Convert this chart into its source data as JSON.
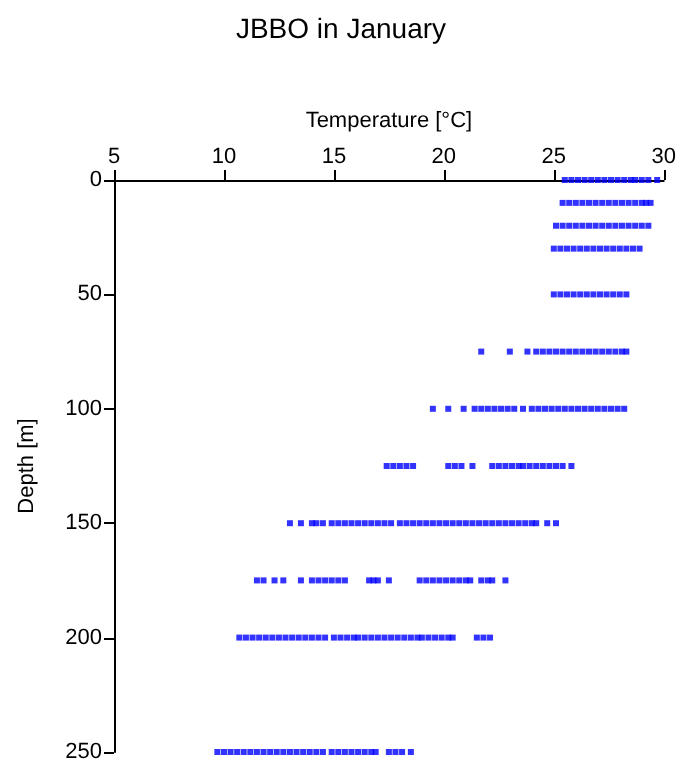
{
  "chart_data": {
    "type": "scatter",
    "title": "JBBO in January",
    "xlabel": "Temperature [°C]",
    "ylabel": "Depth [m]",
    "xlim": [
      5,
      30
    ],
    "xticks": [
      5,
      10,
      15,
      20,
      25,
      30
    ],
    "ylim": [
      250,
      0
    ],
    "yticks": [
      0,
      50,
      100,
      150,
      200,
      250
    ],
    "marker": "square",
    "series": [
      {
        "color": "#0000ff",
        "x": [
          25.5,
          25.8,
          26.1,
          26.4,
          26.7,
          27.0,
          27.3,
          27.6,
          27.9,
          28.2,
          28.5,
          28.7,
          29.0,
          29.3,
          29.7
        ],
        "values": [
          0,
          0,
          0,
          0,
          0,
          0,
          0,
          0,
          0,
          0,
          0,
          0,
          0,
          0,
          0
        ]
      },
      {
        "color": "#0000ff",
        "x": [
          25.4,
          25.7,
          26.0,
          26.3,
          26.6,
          26.9,
          27.2,
          27.5,
          27.8,
          28.1,
          28.4,
          28.7,
          29.0,
          29.2,
          29.4
        ],
        "values": [
          10,
          10,
          10,
          10,
          10,
          10,
          10,
          10,
          10,
          10,
          10,
          10,
          10,
          10,
          10
        ]
      },
      {
        "color": "#0000ff",
        "x": [
          25.1,
          25.4,
          25.7,
          26.0,
          26.3,
          26.6,
          26.9,
          27.2,
          27.5,
          27.8,
          28.1,
          28.4,
          28.7,
          29.0,
          29.3
        ],
        "values": [
          20,
          20,
          20,
          20,
          20,
          20,
          20,
          20,
          20,
          20,
          20,
          20,
          20,
          20,
          20
        ]
      },
      {
        "color": "#0000ff",
        "x": [
          25.0,
          25.3,
          25.6,
          25.9,
          26.2,
          26.5,
          26.8,
          27.1,
          27.4,
          27.7,
          28.0,
          28.3,
          28.6,
          28.9
        ],
        "values": [
          30,
          30,
          30,
          30,
          30,
          30,
          30,
          30,
          30,
          30,
          30,
          30,
          30,
          30
        ]
      },
      {
        "color": "#0000ff",
        "x": [
          25.0,
          25.3,
          25.6,
          25.9,
          26.2,
          26.5,
          26.8,
          27.1,
          27.4,
          27.7,
          28.0,
          28.3
        ],
        "values": [
          50,
          50,
          50,
          50,
          50,
          50,
          50,
          50,
          50,
          50,
          50,
          50
        ]
      },
      {
        "color": "#0000ff",
        "x": [
          21.7,
          23.0,
          23.8,
          24.2,
          24.5,
          24.8,
          25.1,
          25.4,
          25.7,
          26.0,
          26.3,
          26.6,
          26.9,
          27.2,
          27.5,
          27.8,
          28.1,
          28.3
        ],
        "values": [
          75,
          75,
          75,
          75,
          75,
          75,
          75,
          75,
          75,
          75,
          75,
          75,
          75,
          75,
          75,
          75,
          75,
          75
        ]
      },
      {
        "color": "#0000ff",
        "x": [
          19.5,
          20.2,
          20.9,
          21.4,
          21.7,
          22.0,
          22.3,
          22.6,
          22.9,
          23.2,
          23.6,
          24.0,
          24.3,
          24.6,
          24.9,
          25.2,
          25.5,
          25.8,
          26.1,
          26.4,
          26.7,
          27.0,
          27.3,
          27.6,
          27.9,
          28.2
        ],
        "values": [
          100,
          100,
          100,
          100,
          100,
          100,
          100,
          100,
          100,
          100,
          100,
          100,
          100,
          100,
          100,
          100,
          100,
          100,
          100,
          100,
          100,
          100,
          100,
          100,
          100,
          100
        ]
      },
      {
        "color": "#0000ff",
        "x": [
          17.4,
          17.7,
          18.0,
          18.3,
          18.6,
          20.2,
          20.5,
          20.8,
          21.3,
          22.2,
          22.5,
          22.8,
          23.1,
          23.4,
          23.6,
          23.9,
          24.2,
          24.5,
          24.8,
          25.1,
          25.4,
          25.8
        ],
        "values": [
          125,
          125,
          125,
          125,
          125,
          125,
          125,
          125,
          125,
          125,
          125,
          125,
          125,
          125,
          125,
          125,
          125,
          125,
          125,
          125,
          125,
          125
        ]
      },
      {
        "color": "#0000ff",
        "x": [
          13.0,
          13.5,
          14.0,
          14.2,
          14.5,
          14.9,
          15.2,
          15.5,
          15.8,
          16.1,
          16.4,
          16.7,
          17.0,
          17.3,
          17.6,
          18.0,
          18.3,
          18.6,
          18.9,
          19.2,
          19.5,
          19.8,
          20.1,
          20.4,
          20.7,
          21.0,
          21.3,
          21.6,
          21.9,
          22.2,
          22.5,
          22.8,
          23.1,
          23.4,
          23.7,
          24.0,
          24.2,
          24.7,
          25.1
        ],
        "values": [
          150,
          150,
          150,
          150,
          150,
          150,
          150,
          150,
          150,
          150,
          150,
          150,
          150,
          150,
          150,
          150,
          150,
          150,
          150,
          150,
          150,
          150,
          150,
          150,
          150,
          150,
          150,
          150,
          150,
          150,
          150,
          150,
          150,
          150,
          150,
          150,
          150,
          150,
          150
        ]
      },
      {
        "color": "#0000ff",
        "x": [
          11.5,
          11.8,
          12.3,
          12.7,
          13.5,
          14.0,
          14.3,
          14.6,
          14.9,
          15.2,
          15.5,
          16.6,
          16.8,
          17.0,
          17.5,
          18.9,
          19.2,
          19.5,
          19.8,
          20.1,
          20.4,
          20.7,
          21.0,
          21.2,
          21.7,
          22.0,
          22.2,
          22.8
        ],
        "values": [
          175,
          175,
          175,
          175,
          175,
          175,
          175,
          175,
          175,
          175,
          175,
          175,
          175,
          175,
          175,
          175,
          175,
          175,
          175,
          175,
          175,
          175,
          175,
          175,
          175,
          175,
          175,
          175
        ]
      },
      {
        "color": "#0000ff",
        "x": [
          10.7,
          11.0,
          11.3,
          11.6,
          11.9,
          12.2,
          12.5,
          12.8,
          13.1,
          13.4,
          13.7,
          14.0,
          14.3,
          14.6,
          15.0,
          15.3,
          15.6,
          15.9,
          16.1,
          16.4,
          16.7,
          17.0,
          17.3,
          17.6,
          17.9,
          18.2,
          18.5,
          18.8,
          19.0,
          19.3,
          19.6,
          19.9,
          20.2,
          20.4,
          21.5,
          21.8,
          22.1
        ],
        "values": [
          200,
          200,
          200,
          200,
          200,
          200,
          200,
          200,
          200,
          200,
          200,
          200,
          200,
          200,
          200,
          200,
          200,
          200,
          200,
          200,
          200,
          200,
          200,
          200,
          200,
          200,
          200,
          200,
          200,
          200,
          200,
          200,
          200,
          200,
          200,
          200,
          200
        ]
      },
      {
        "color": "#0000ff",
        "x": [
          9.7,
          10.0,
          10.3,
          10.6,
          10.9,
          11.2,
          11.5,
          11.8,
          12.1,
          12.4,
          12.7,
          13.0,
          13.3,
          13.6,
          13.9,
          14.2,
          14.5,
          14.9,
          15.2,
          15.5,
          15.8,
          16.1,
          16.4,
          16.7,
          16.9,
          17.5,
          17.8,
          18.1,
          18.5
        ],
        "values": [
          250,
          250,
          250,
          250,
          250,
          250,
          250,
          250,
          250,
          250,
          250,
          250,
          250,
          250,
          250,
          250,
          250,
          250,
          250,
          250,
          250,
          250,
          250,
          250,
          250,
          250,
          250,
          250,
          250
        ]
      }
    ]
  }
}
